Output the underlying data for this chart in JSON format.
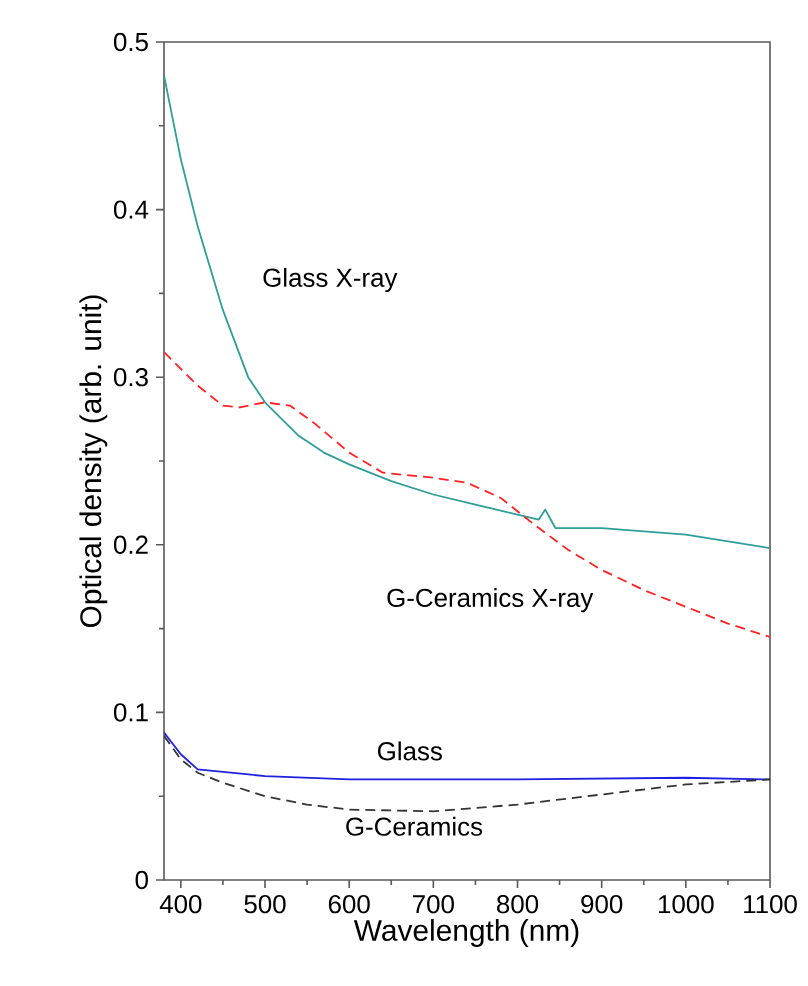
{
  "chart_data": {
    "type": "line",
    "xlabel": "Wavelength (nm)",
    "ylabel": "Optical density (arb. unit)",
    "xlim": [
      380,
      1100
    ],
    "xticks": [
      400,
      500,
      600,
      700,
      800,
      900,
      1000,
      1100
    ],
    "ylim": [
      0,
      0.5
    ],
    "yticks": [
      0,
      0.1,
      0.2,
      0.3,
      0.4,
      0.5
    ],
    "grid": false,
    "series": [
      {
        "name": "Glass X-ray",
        "color": "#2e9e9a",
        "line_style": "solid",
        "x": [
          380,
          390,
          400,
          410,
          420,
          435,
          450,
          465,
          480,
          500,
          520,
          540,
          570,
          600,
          650,
          700,
          750,
          800,
          825,
          833,
          845,
          900,
          1000,
          1100
        ],
        "values": [
          0.48,
          0.455,
          0.43,
          0.41,
          0.39,
          0.365,
          0.34,
          0.32,
          0.3,
          0.285,
          0.275,
          0.265,
          0.255,
          0.248,
          0.238,
          0.23,
          0.224,
          0.218,
          0.215,
          0.221,
          0.21,
          0.21,
          0.206,
          0.198
        ]
      },
      {
        "name": "G-Ceramics X-ray",
        "color": "#ff2020",
        "line_style": "dashed",
        "x": [
          380,
          420,
          450,
          470,
          500,
          530,
          560,
          600,
          640,
          700,
          740,
          780,
          820,
          860,
          900,
          950,
          1000,
          1050,
          1100
        ],
        "values": [
          0.315,
          0.295,
          0.283,
          0.282,
          0.285,
          0.283,
          0.272,
          0.255,
          0.243,
          0.24,
          0.237,
          0.228,
          0.212,
          0.197,
          0.185,
          0.173,
          0.163,
          0.153,
          0.145
        ]
      },
      {
        "name": "Glass",
        "color": "#2020e0",
        "line_style": "solid",
        "x": [
          380,
          400,
          420,
          500,
          600,
          800,
          1000,
          1100
        ],
        "values": [
          0.088,
          0.075,
          0.066,
          0.062,
          0.06,
          0.06,
          0.061,
          0.06
        ]
      },
      {
        "name": "G-Ceramics",
        "color": "#333333",
        "line_style": "dashed",
        "x": [
          380,
          400,
          420,
          450,
          500,
          550,
          600,
          700,
          800,
          900,
          1000,
          1100
        ],
        "values": [
          0.086,
          0.072,
          0.064,
          0.058,
          0.05,
          0.045,
          0.042,
          0.041,
          0.045,
          0.051,
          0.057,
          0.06
        ]
      }
    ]
  }
}
